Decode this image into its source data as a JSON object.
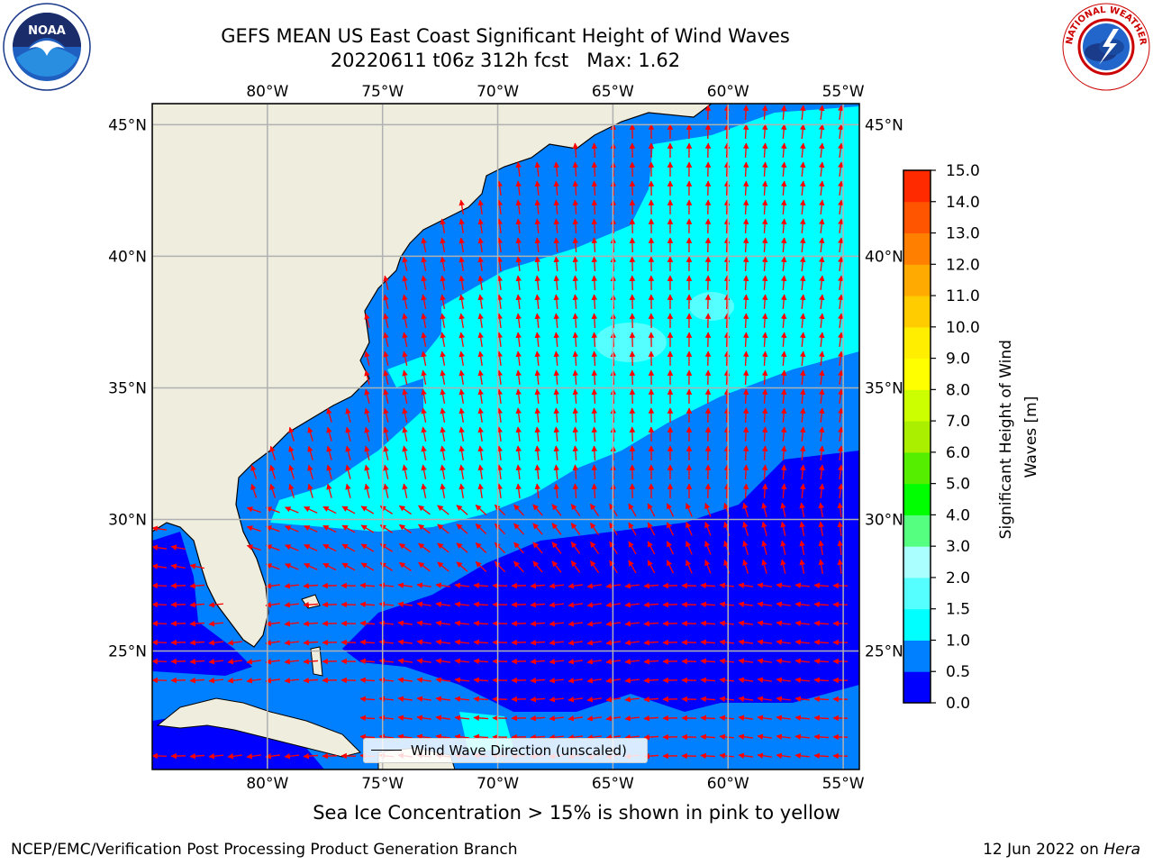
{
  "header": {
    "title_line1": "GEFS MEAN US East Coast Significant Height of Wind Waves",
    "title_line2": "20220611 t06z 312h fcst   Max: 1.62"
  },
  "logos": {
    "left": "noaa-logo",
    "right": "nws-logo",
    "left_text": "NOAA",
    "right_text": "NATIONAL WEATHER SERVICE"
  },
  "map": {
    "projection": "plate-carree",
    "lon_range": [
      -85,
      -54.3
    ],
    "lat_range": [
      20.5,
      45.8
    ],
    "lon_ticks": [
      "80°W",
      "75°W",
      "70°W",
      "65°W",
      "60°W",
      "55°W"
    ],
    "lat_ticks": [
      "45°N",
      "40°N",
      "35°N",
      "30°N",
      "25°N"
    ],
    "gridlines": true,
    "land_color": "#eeedde",
    "vector_color": "#ff0000",
    "legend_label": "Wind Wave Direction (unscaled)",
    "legend_placement": "bottom-center"
  },
  "colorbar": {
    "label_line1": "Significant Height of Wind",
    "label_line2": "Waves [m]",
    "ticks": [
      "0.0",
      "0.5",
      "1.0",
      "1.5",
      "2.0",
      "3.0",
      "4.0",
      "5.0",
      "6.0",
      "7.0",
      "8.0",
      "9.0",
      "10.0",
      "11.0",
      "12.0",
      "13.0",
      "14.0",
      "15.0"
    ],
    "colors": [
      "#0000ff",
      "#0080ff",
      "#00ffff",
      "#55ffff",
      "#aaffff",
      "#55ff80",
      "#00ff00",
      "#55ee00",
      "#aaee00",
      "#ccff00",
      "#ffff00",
      "#ffee00",
      "#ffcc00",
      "#ffaa00",
      "#ff8000",
      "#ff5500",
      "#ff2a00"
    ]
  },
  "footer": {
    "ice_note": "Sea Ice Concentration > 15% is shown in pink to yellow",
    "credit_left": "NCEP/EMC/Verification Post Processing Product Generation Branch",
    "credit_date": "12 Jun 2022 on ",
    "credit_host": "Hera"
  }
}
